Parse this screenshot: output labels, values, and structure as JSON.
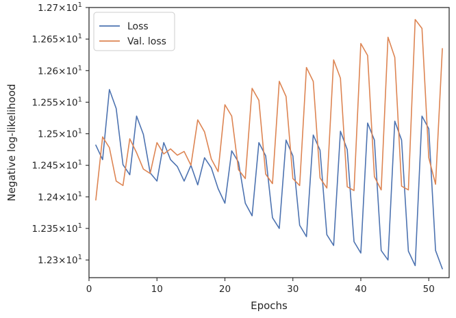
{
  "chart_data": {
    "type": "line",
    "xlabel": "Epochs",
    "ylabel": "Negative log-likelihood",
    "xlim": [
      0,
      53
    ],
    "ylim": [
      12.272,
      12.7
    ],
    "grid": false,
    "legend_position": "top-left",
    "x_ticks": [
      {
        "value": 0,
        "label": "0"
      },
      {
        "value": 10,
        "label": "10"
      },
      {
        "value": 20,
        "label": "20"
      },
      {
        "value": 30,
        "label": "30"
      },
      {
        "value": 40,
        "label": "40"
      },
      {
        "value": 50,
        "label": "50"
      }
    ],
    "y_ticks": [
      {
        "value": 12.3,
        "mantissa": "1.23",
        "base": "10",
        "exp": "1"
      },
      {
        "value": 12.35,
        "mantissa": "1.235",
        "base": "10",
        "exp": "1"
      },
      {
        "value": 12.4,
        "mantissa": "1.24",
        "base": "10",
        "exp": "1"
      },
      {
        "value": 12.45,
        "mantissa": "1.245",
        "base": "10",
        "exp": "1"
      },
      {
        "value": 12.5,
        "mantissa": "1.25",
        "base": "10",
        "exp": "1"
      },
      {
        "value": 12.55,
        "mantissa": "1.255",
        "base": "10",
        "exp": "1"
      },
      {
        "value": 12.6,
        "mantissa": "1.26",
        "base": "10",
        "exp": "1"
      },
      {
        "value": 12.65,
        "mantissa": "1.265",
        "base": "10",
        "exp": "1"
      },
      {
        "value": 12.7,
        "mantissa": "1.27",
        "base": "10",
        "exp": "1"
      }
    ],
    "x": [
      1,
      2,
      3,
      4,
      5,
      6,
      7,
      8,
      9,
      10,
      11,
      12,
      13,
      14,
      15,
      16,
      17,
      18,
      19,
      20,
      21,
      22,
      23,
      24,
      25,
      26,
      27,
      28,
      29,
      30,
      31,
      32,
      33,
      34,
      35,
      36,
      37,
      38,
      39,
      40,
      41,
      42,
      43,
      44,
      45,
      46,
      47,
      48,
      49,
      50,
      51,
      52
    ],
    "series": [
      {
        "name": "Loss",
        "color": "#4c72b0",
        "values": [
          12.482,
          12.459,
          12.57,
          12.54,
          12.451,
          12.435,
          12.528,
          12.499,
          12.438,
          12.425,
          12.486,
          12.459,
          12.448,
          12.425,
          12.45,
          12.419,
          12.462,
          12.446,
          12.413,
          12.39,
          12.473,
          12.455,
          12.39,
          12.37,
          12.486,
          12.465,
          12.367,
          12.35,
          12.49,
          12.465,
          12.355,
          12.337,
          12.498,
          12.474,
          12.34,
          12.323,
          12.504,
          12.475,
          12.329,
          12.311,
          12.517,
          12.49,
          12.315,
          12.3,
          12.52,
          12.49,
          12.314,
          12.291,
          12.528,
          12.508,
          12.315,
          12.286
        ]
      },
      {
        "name": "Val. loss",
        "color": "#dd8452",
        "values": [
          12.395,
          12.495,
          12.478,
          12.425,
          12.418,
          12.492,
          12.47,
          12.444,
          12.437,
          12.486,
          12.468,
          12.476,
          12.466,
          12.472,
          12.45,
          12.522,
          12.503,
          12.46,
          12.44,
          12.546,
          12.528,
          12.443,
          12.429,
          12.572,
          12.553,
          12.436,
          12.421,
          12.583,
          12.559,
          12.429,
          12.418,
          12.605,
          12.583,
          12.43,
          12.414,
          12.617,
          12.588,
          12.416,
          12.41,
          12.643,
          12.624,
          12.432,
          12.411,
          12.653,
          12.621,
          12.417,
          12.411,
          12.681,
          12.667,
          12.462,
          12.42,
          12.635
        ]
      }
    ]
  }
}
